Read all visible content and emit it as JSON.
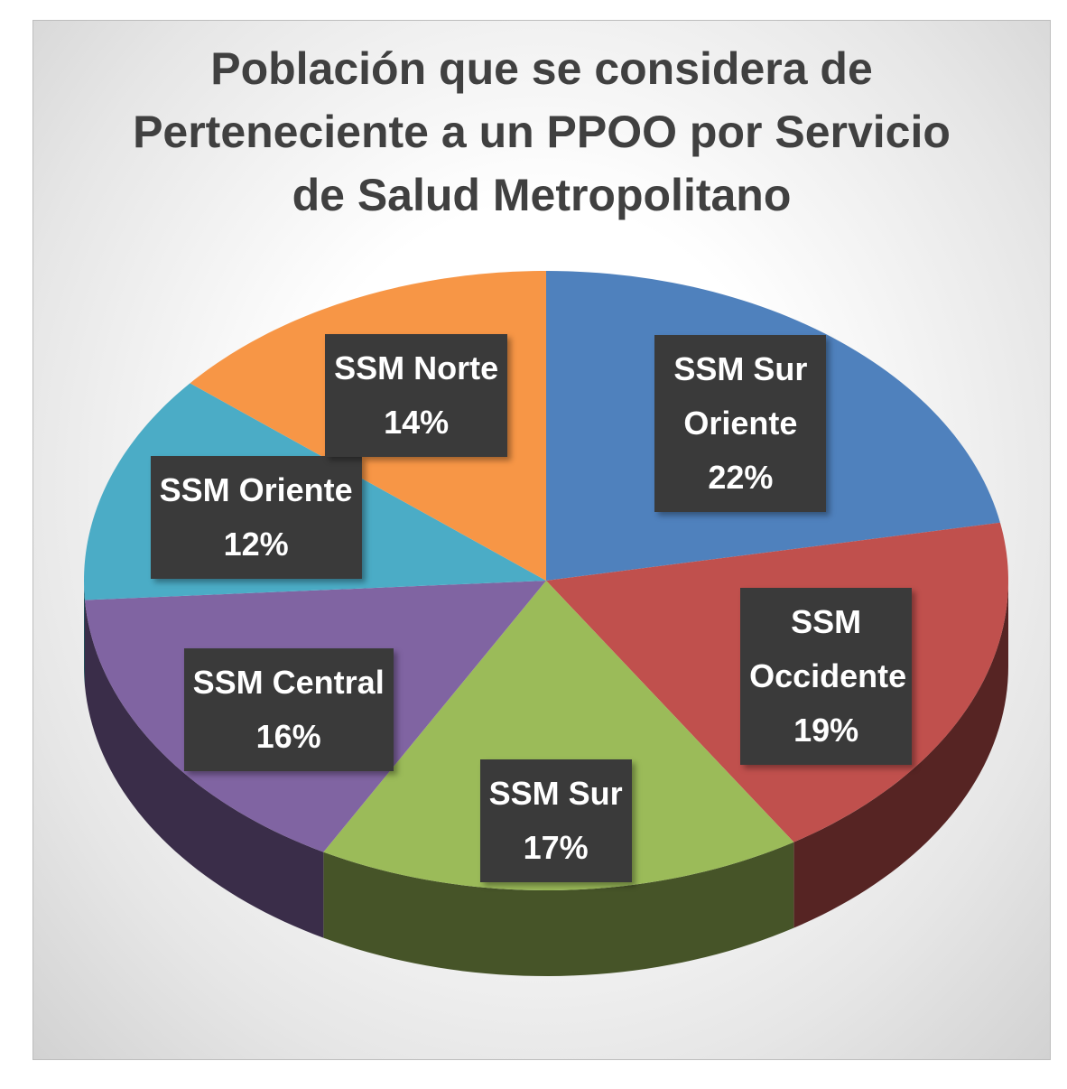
{
  "chart_data": {
    "type": "pie",
    "title": "Población que se considera de Perteneciente a un PPOO por Servicio de Salud Metropolitano",
    "categories": [
      "SSM Sur Oriente",
      "SSM Occidente",
      "SSM Sur",
      "SSM Central",
      "SSM Oriente",
      "SSM Norte"
    ],
    "values": [
      22,
      19,
      17,
      16,
      12,
      14
    ],
    "value_labels": [
      "22%",
      "19%",
      "17%",
      "16%",
      "12%",
      "14%"
    ],
    "colors": [
      "#4f81bd",
      "#c0504d",
      "#9bbb59",
      "#8064a2",
      "#4bacc6",
      "#f79646"
    ]
  }
}
